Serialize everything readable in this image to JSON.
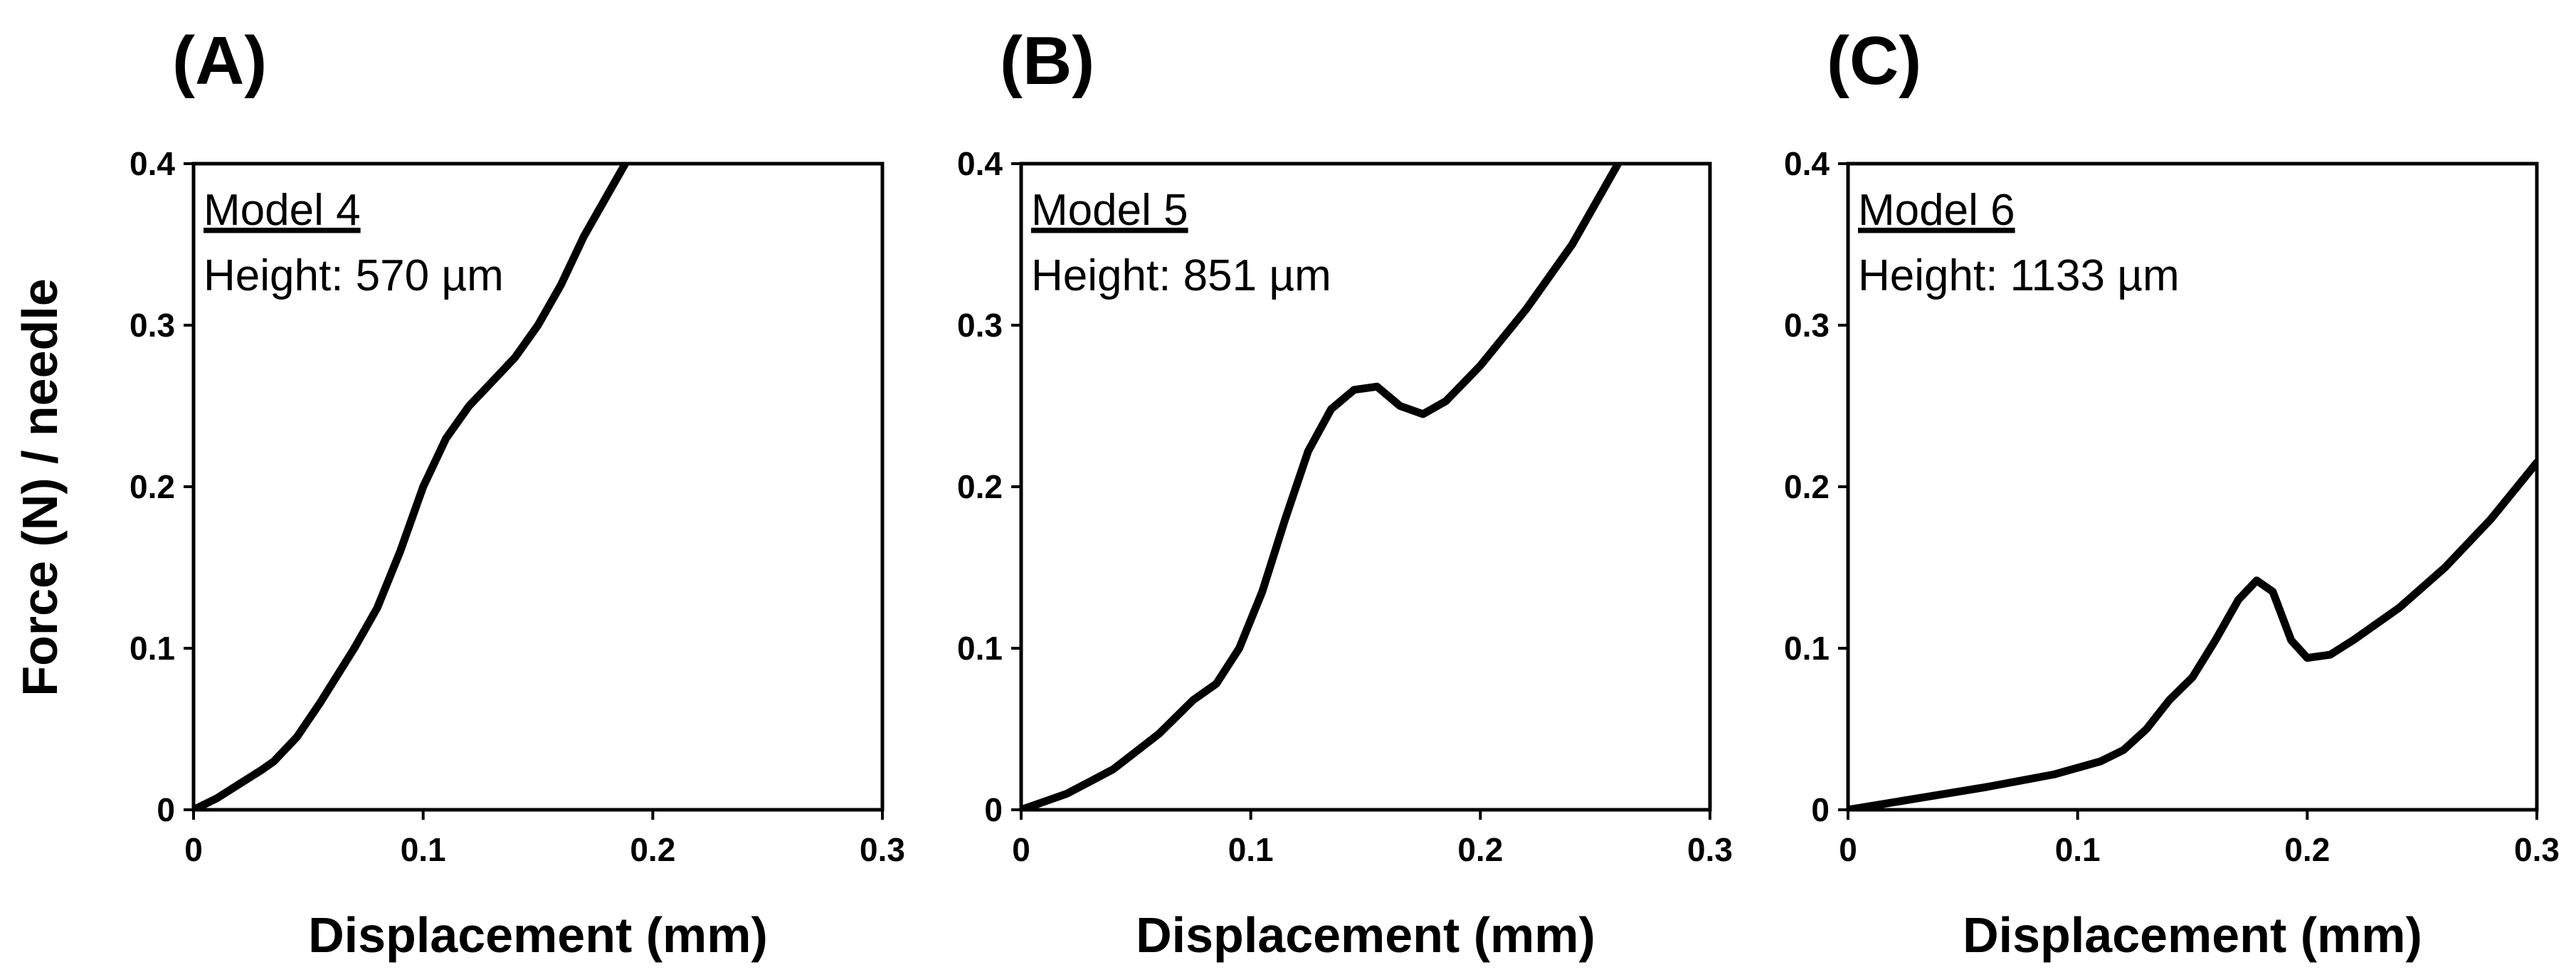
{
  "ylabel": "Force (N) / needle",
  "chart_data": [
    {
      "type": "line",
      "panel_label": "(A)",
      "annotation_title": "Model 4",
      "annotation_subtitle": "Height: 570 µm",
      "xlabel": "Displacement (mm)",
      "ylabel": "Force (N) / needle",
      "xlim": [
        0,
        0.3
      ],
      "ylim": [
        0,
        0.4
      ],
      "xticks": [
        "0",
        "0.1",
        "0.2",
        "0.3"
      ],
      "yticks": [
        "0",
        "0.1",
        "0.2",
        "0.3",
        "0.4"
      ],
      "grid": false,
      "series": [
        {
          "color": "#000000",
          "x": [
            0,
            0.01,
            0.02,
            0.03,
            0.035,
            0.045,
            0.055,
            0.07,
            0.08,
            0.09,
            0.1,
            0.11,
            0.12,
            0.13,
            0.14,
            0.15,
            0.16,
            0.17,
            0.18,
            0.19
          ],
          "y": [
            0,
            0.007,
            0.016,
            0.025,
            0.03,
            0.045,
            0.066,
            0.1,
            0.125,
            0.16,
            0.2,
            0.23,
            0.25,
            0.265,
            0.28,
            0.3,
            0.325,
            0.355,
            0.38,
            0.405
          ]
        }
      ]
    },
    {
      "type": "line",
      "panel_label": "(B)",
      "annotation_title": "Model 5",
      "annotation_subtitle": "Height: 851 µm",
      "xlabel": "Displacement (mm)",
      "ylabel": "Force (N) / needle",
      "xlim": [
        0,
        0.3
      ],
      "ylim": [
        0,
        0.4
      ],
      "xticks": [
        "0",
        "0.1",
        "0.2",
        "0.3"
      ],
      "yticks": [
        "0",
        "0.1",
        "0.2",
        "0.3",
        "0.4"
      ],
      "grid": false,
      "series": [
        {
          "color": "#000000",
          "x": [
            0,
            0.02,
            0.04,
            0.06,
            0.075,
            0.085,
            0.095,
            0.105,
            0.115,
            0.125,
            0.135,
            0.145,
            0.155,
            0.165,
            0.175,
            0.185,
            0.2,
            0.22,
            0.24,
            0.26
          ],
          "y": [
            0,
            0.01,
            0.025,
            0.047,
            0.068,
            0.078,
            0.1,
            0.135,
            0.18,
            0.222,
            0.248,
            0.26,
            0.262,
            0.25,
            0.245,
            0.253,
            0.275,
            0.31,
            0.35,
            0.4
          ]
        }
      ]
    },
    {
      "type": "line",
      "panel_label": "(C)",
      "annotation_title": "Model 6",
      "annotation_subtitle": "Height: 1133 µm",
      "xlabel": "Displacement (mm)",
      "ylabel": "Force (N) / needle",
      "xlim": [
        0,
        0.3
      ],
      "ylim": [
        0,
        0.4
      ],
      "xticks": [
        "0",
        "0.1",
        "0.2",
        "0.3"
      ],
      "yticks": [
        "0",
        "0.1",
        "0.2",
        "0.3",
        "0.4"
      ],
      "grid": false,
      "series": [
        {
          "color": "#000000",
          "x": [
            0,
            0.03,
            0.06,
            0.09,
            0.11,
            0.12,
            0.13,
            0.14,
            0.15,
            0.16,
            0.17,
            0.178,
            0.185,
            0.193,
            0.2,
            0.21,
            0.22,
            0.24,
            0.26,
            0.28,
            0.3
          ],
          "y": [
            0,
            0.007,
            0.014,
            0.022,
            0.03,
            0.037,
            0.05,
            0.068,
            0.082,
            0.105,
            0.13,
            0.142,
            0.135,
            0.105,
            0.094,
            0.096,
            0.105,
            0.125,
            0.15,
            0.18,
            0.215
          ]
        }
      ]
    }
  ]
}
